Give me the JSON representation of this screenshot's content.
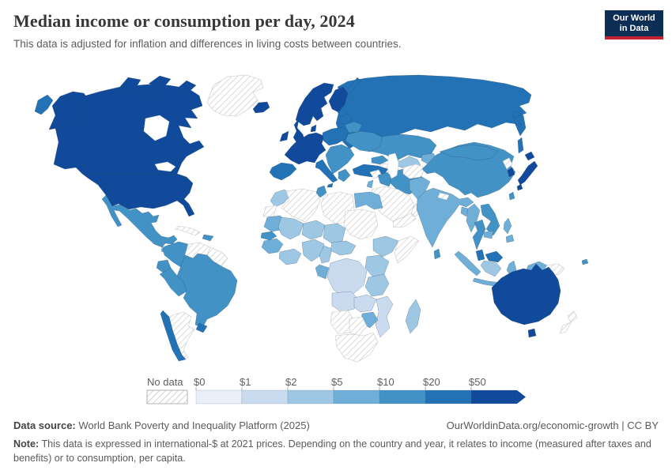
{
  "header": {
    "title": "Median income or consumption per day, 2024",
    "subtitle": "This data is adjusted for inflation and differences in living costs between countries."
  },
  "logo": {
    "line1": "Our World",
    "line2": "in Data",
    "bg_color": "#0d2e54",
    "accent_color": "#c4222f"
  },
  "chart_data": {
    "type": "heatmap",
    "subtype": "choropleth-world-map",
    "title": "Median income or consumption per day, 2024",
    "unit": "international-$ per day at 2021 prices",
    "legend": {
      "position": "bottom",
      "no_data_label": "No data",
      "tick_labels": [
        "$0",
        "$1",
        "$2",
        "$5",
        "$10",
        "$20",
        "$50"
      ],
      "open_ended_arrow": true,
      "palette": {
        "0": "#e9eef8",
        "1": "#cbdbef",
        "2": "#9dc7e2",
        "5": "#6fafd7",
        "10": "#4292c6",
        "20": "#2272b5",
        "50": "#11499b"
      },
      "no_data_fill": "hatched",
      "hatch_line_color": "#d6d6d6",
      "label_color": "#5f5f5f"
    },
    "regions": [
      {
        "id": "russia",
        "bin": "20"
      },
      {
        "id": "chukotka",
        "bin": "20"
      },
      {
        "id": "kazakhstan",
        "bin": "10"
      },
      {
        "id": "uzbekistan",
        "bin": "2"
      },
      {
        "id": "turkmenistan",
        "bin": "nodata"
      },
      {
        "id": "kyrgyz-tajik",
        "bin": "5"
      },
      {
        "id": "canada",
        "bin": "50"
      },
      {
        "id": "arctic-islands",
        "bin": "50"
      },
      {
        "id": "alaska",
        "bin": "50"
      },
      {
        "id": "usa",
        "bin": "50"
      },
      {
        "id": "greenland",
        "bin": "nodata"
      },
      {
        "id": "iceland",
        "bin": "50"
      },
      {
        "id": "norway-sweden",
        "bin": "50"
      },
      {
        "id": "finland",
        "bin": "50"
      },
      {
        "id": "denmark",
        "bin": "50"
      },
      {
        "id": "uk",
        "bin": "50"
      },
      {
        "id": "ireland",
        "bin": "50"
      },
      {
        "id": "west-europe",
        "bin": "50"
      },
      {
        "id": "iberia",
        "bin": "20"
      },
      {
        "id": "italy",
        "bin": "20"
      },
      {
        "id": "poland-czech",
        "bin": "20"
      },
      {
        "id": "baltics",
        "bin": "20"
      },
      {
        "id": "belarus",
        "bin": "10"
      },
      {
        "id": "ukraine",
        "bin": "10"
      },
      {
        "id": "balkans",
        "bin": "10"
      },
      {
        "id": "greece",
        "bin": "10"
      },
      {
        "id": "turkey",
        "bin": "20"
      },
      {
        "id": "caucasus",
        "bin": "10"
      },
      {
        "id": "syria",
        "bin": "nodata"
      },
      {
        "id": "iraq",
        "bin": "10"
      },
      {
        "id": "jordan-israel",
        "bin": "5"
      },
      {
        "id": "iran",
        "bin": "10"
      },
      {
        "id": "saudi",
        "bin": "nodata"
      },
      {
        "id": "yemen",
        "bin": "nodata"
      },
      {
        "id": "oman",
        "bin": "nodata"
      },
      {
        "id": "afghanistan",
        "bin": "nodata"
      },
      {
        "id": "pakistan",
        "bin": "5"
      },
      {
        "id": "china",
        "bin": "10"
      },
      {
        "id": "mongolia",
        "bin": "10"
      },
      {
        "id": "india",
        "bin": "5"
      },
      {
        "id": "nepal",
        "bin": "nodata"
      },
      {
        "id": "bangladesh",
        "bin": "5"
      },
      {
        "id": "sri-lanka",
        "bin": "10"
      },
      {
        "id": "myanmar",
        "bin": "5"
      },
      {
        "id": "thailand",
        "bin": "10"
      },
      {
        "id": "laos-vietnam",
        "bin": "10"
      },
      {
        "id": "cambodia",
        "bin": "5"
      },
      {
        "id": "malaysia",
        "bin": "20"
      },
      {
        "id": "north-korea",
        "bin": "nodata"
      },
      {
        "id": "south-korea",
        "bin": "50"
      },
      {
        "id": "japan",
        "bin": "50"
      },
      {
        "id": "taiwan",
        "bin": "10"
      },
      {
        "id": "philippines",
        "bin": "5"
      },
      {
        "id": "morocco",
        "bin": "2"
      },
      {
        "id": "western-sahara",
        "bin": "nodata"
      },
      {
        "id": "algeria",
        "bin": "nodata"
      },
      {
        "id": "tunisia",
        "bin": "10"
      },
      {
        "id": "libya",
        "bin": "nodata"
      },
      {
        "id": "egypt",
        "bin": "5"
      },
      {
        "id": "mauritania",
        "bin": "5"
      },
      {
        "id": "mali",
        "bin": "2"
      },
      {
        "id": "niger",
        "bin": "2"
      },
      {
        "id": "chad",
        "bin": "2"
      },
      {
        "id": "sudan",
        "bin": "nodata"
      },
      {
        "id": "ethiopia",
        "bin": "2"
      },
      {
        "id": "somalia",
        "bin": "nodata"
      },
      {
        "id": "senegal",
        "bin": "10"
      },
      {
        "id": "guinea",
        "bin": "5"
      },
      {
        "id": "ghana-cote",
        "bin": "2"
      },
      {
        "id": "nigeria",
        "bin": "2"
      },
      {
        "id": "cameroon",
        "bin": "2"
      },
      {
        "id": "car",
        "bin": "2"
      },
      {
        "id": "gabon-congo",
        "bin": "5"
      },
      {
        "id": "drc",
        "bin": "1"
      },
      {
        "id": "uganda-kenya",
        "bin": "2"
      },
      {
        "id": "tanzania",
        "bin": "2"
      },
      {
        "id": "angola",
        "bin": "1"
      },
      {
        "id": "zambia",
        "bin": "1"
      },
      {
        "id": "mozambique",
        "bin": "1"
      },
      {
        "id": "zimbabwe",
        "bin": "5"
      },
      {
        "id": "namibia",
        "bin": "nodata"
      },
      {
        "id": "botswana",
        "bin": "nodata"
      },
      {
        "id": "south-africa",
        "bin": "nodata"
      },
      {
        "id": "madagascar",
        "bin": "2"
      },
      {
        "id": "mexico",
        "bin": "10"
      },
      {
        "id": "guatemala",
        "bin": "5"
      },
      {
        "id": "honduras-nicaragua",
        "bin": "2"
      },
      {
        "id": "costa-rica-panama",
        "bin": "20"
      },
      {
        "id": "cuba",
        "bin": "nodata"
      },
      {
        "id": "hispaniola",
        "bin": "10"
      },
      {
        "id": "colombia",
        "bin": "10"
      },
      {
        "id": "venezuela",
        "bin": "nodata"
      },
      {
        "id": "guyanas",
        "bin": "nodata"
      },
      {
        "id": "ecuador",
        "bin": "10"
      },
      {
        "id": "brazil",
        "bin": "10"
      },
      {
        "id": "peru",
        "bin": "10"
      },
      {
        "id": "argentina",
        "bin": "nodata"
      },
      {
        "id": "chile",
        "bin": "20"
      },
      {
        "id": "uruguay",
        "bin": "20"
      },
      {
        "id": "sumatra",
        "bin": "5"
      },
      {
        "id": "java",
        "bin": "5"
      },
      {
        "id": "borneo-malaysia",
        "bin": "20"
      },
      {
        "id": "borneo-indonesia",
        "bin": "2"
      },
      {
        "id": "sulawesi",
        "bin": "5"
      },
      {
        "id": "timor",
        "bin": "5"
      },
      {
        "id": "new-guinea-west",
        "bin": "5"
      },
      {
        "id": "png",
        "bin": "nodata"
      },
      {
        "id": "australia",
        "bin": "50"
      },
      {
        "id": "tasmania",
        "bin": "50"
      },
      {
        "id": "new-zealand",
        "bin": "nodata"
      },
      {
        "id": "fiji",
        "bin": "10"
      }
    ]
  },
  "footer": {
    "source_label": "Data source:",
    "source_text": "World Bank Poverty and Inequality Platform (2025)",
    "link": "OurWorldinData.org/economic-growth",
    "divider": "|",
    "license": "CC BY",
    "note_label": "Note:",
    "note_text": "This data is expressed in international-$ at 2021 prices. Depending on the country and year, it relates to income (measured after taxes and benefits) or to consumption, per capita."
  }
}
